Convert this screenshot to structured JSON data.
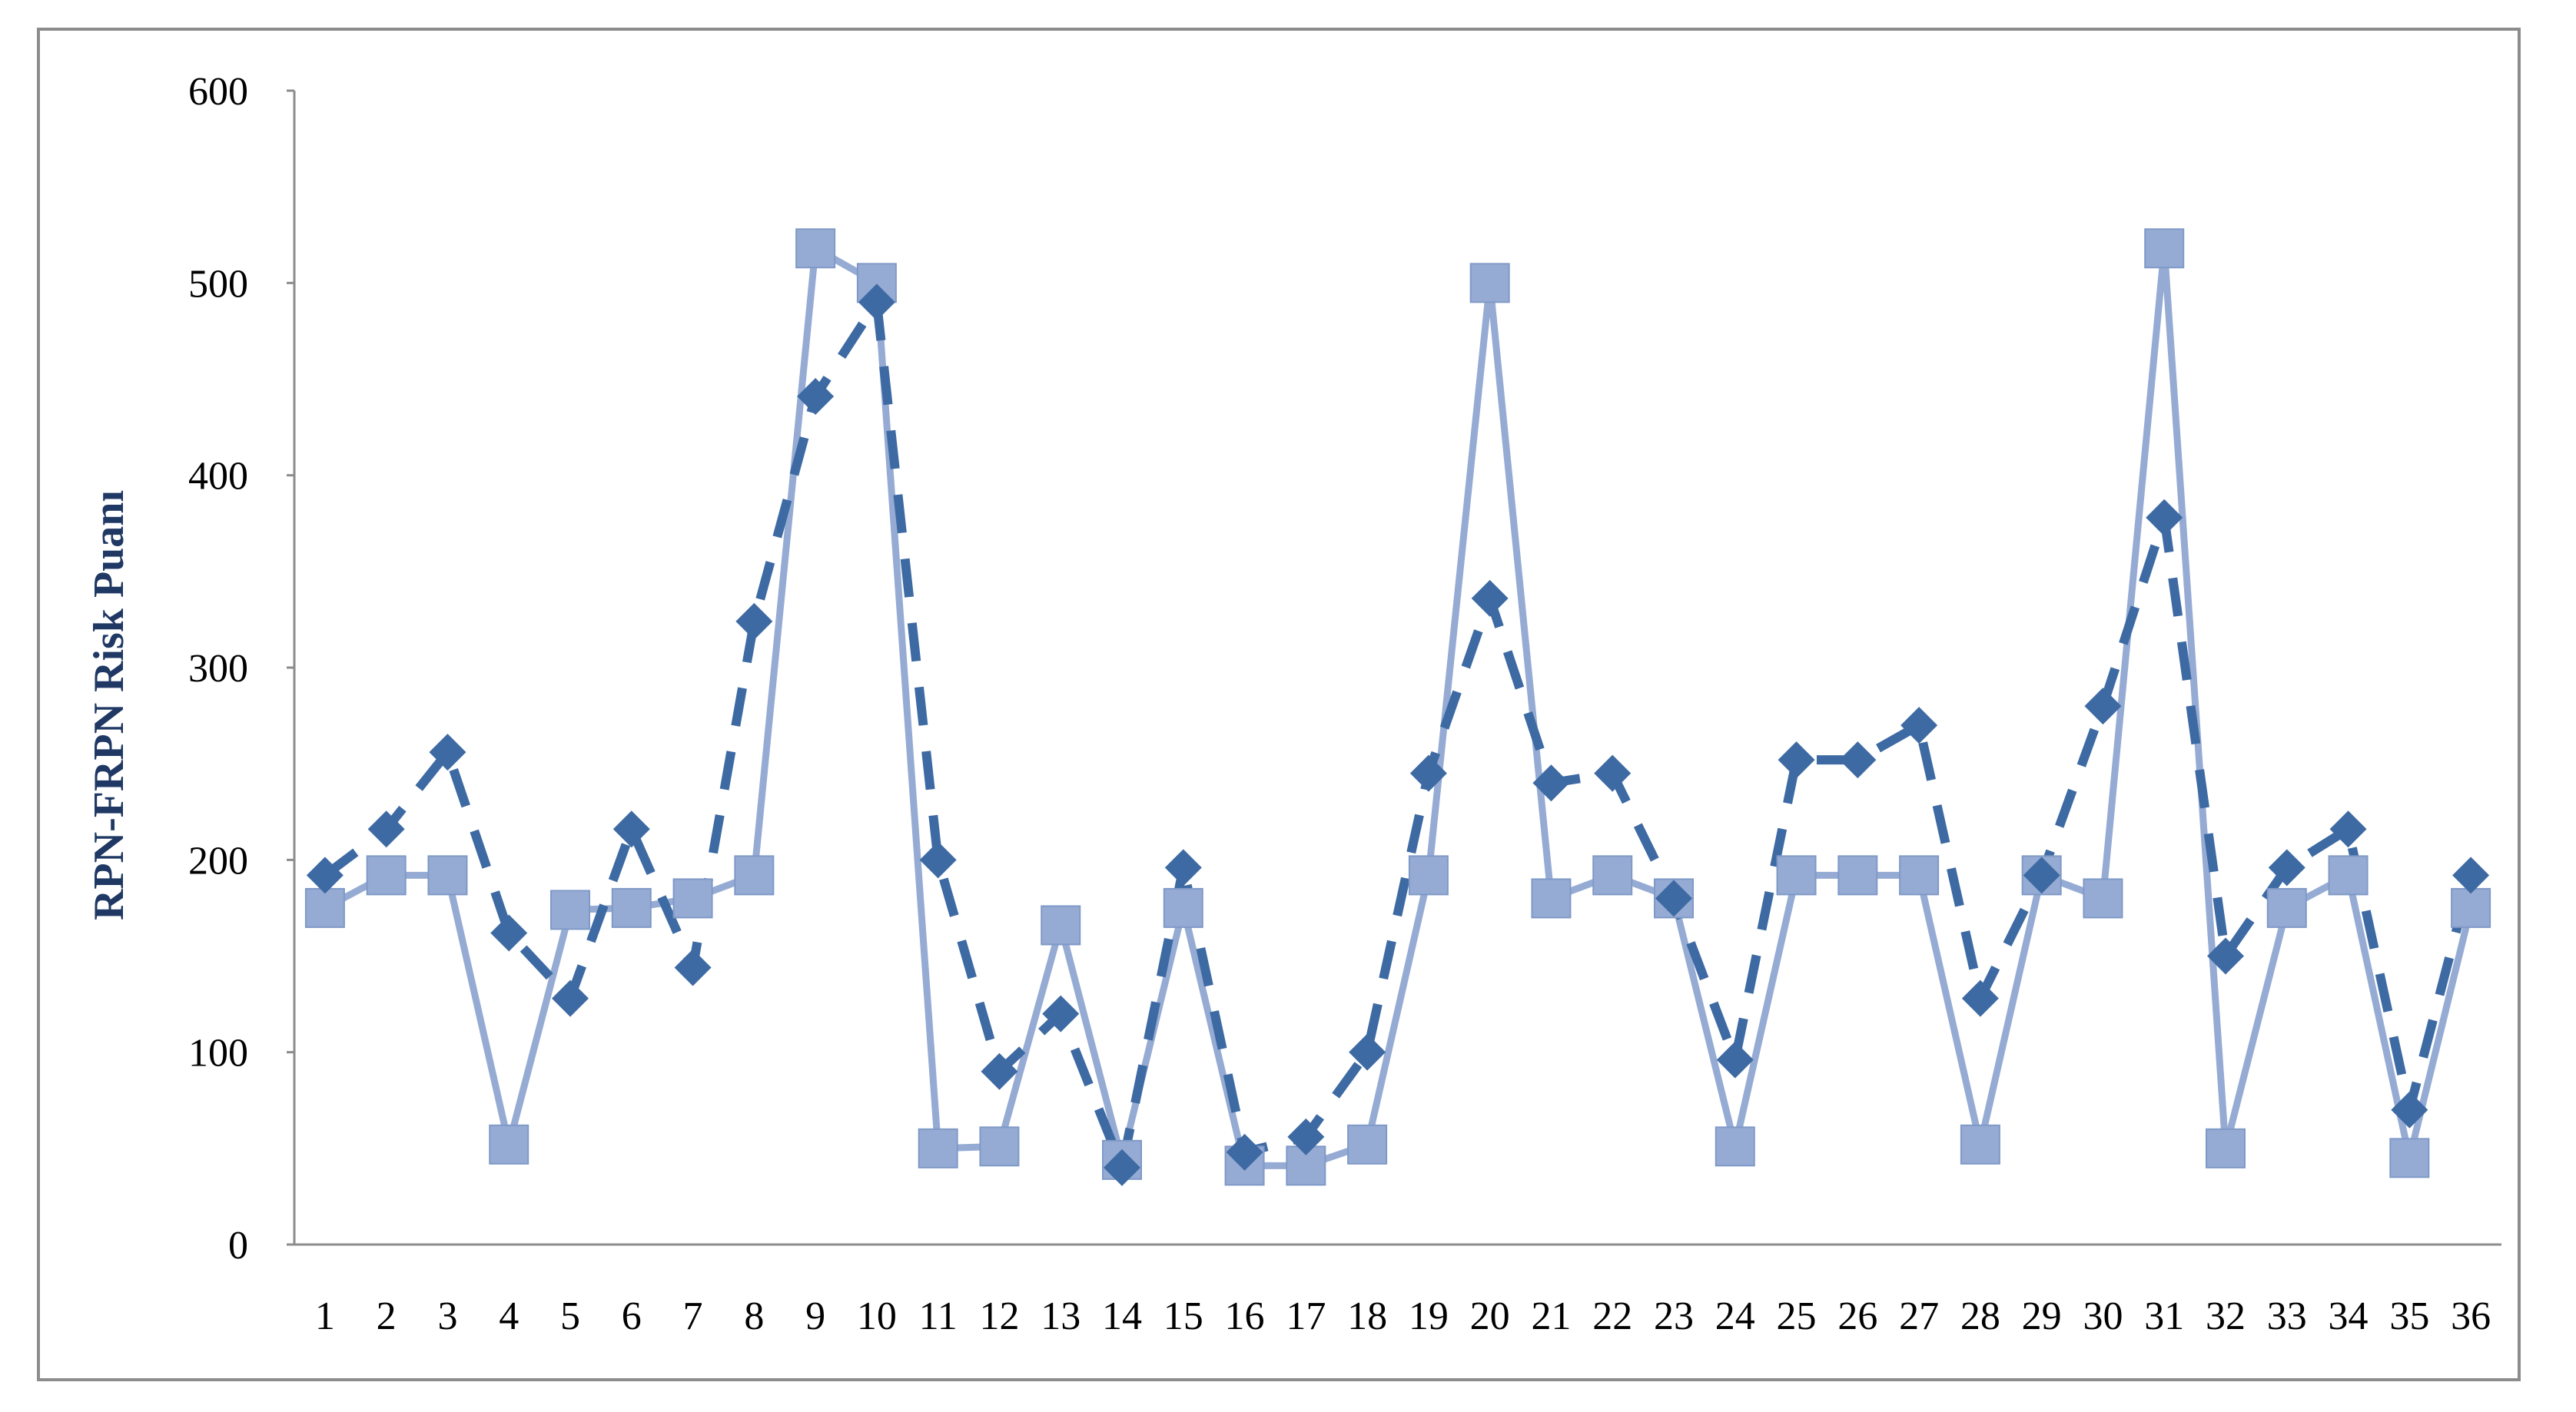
{
  "chart_data": {
    "type": "line",
    "title": "",
    "xlabel": "",
    "ylabel": "RPN-FRPN Risk Puanı",
    "ylim": [
      0,
      600
    ],
    "yticks": [
      0,
      100,
      200,
      300,
      400,
      500,
      600
    ],
    "grid": false,
    "legend": "none",
    "categories": [
      "1",
      "2",
      "3",
      "4",
      "5",
      "6",
      "7",
      "8",
      "9",
      "10",
      "11",
      "12",
      "13",
      "14",
      "15",
      "16",
      "17",
      "18",
      "19",
      "20",
      "21",
      "22",
      "23",
      "24",
      "25",
      "26",
      "27",
      "28",
      "29",
      "30",
      "31",
      "32",
      "33",
      "34",
      "35",
      "36"
    ],
    "series": [
      {
        "style": "dashed",
        "marker": "diamond",
        "color": "#3e6aa3",
        "values": [
          192,
          216,
          256,
          162,
          128,
          216,
          144,
          324,
          441,
          490,
          200,
          90,
          120,
          40,
          196,
          48,
          56,
          100,
          245,
          336,
          240,
          245,
          180,
          96,
          252,
          252,
          270,
          128,
          192,
          280,
          378,
          150,
          196,
          216,
          70,
          192
        ]
      },
      {
        "style": "solid",
        "marker": "square",
        "color": "#95abd3",
        "values": [
          175,
          192,
          192,
          52,
          174,
          175,
          180,
          192,
          518,
          500,
          50,
          51,
          166,
          44,
          175,
          41,
          41,
          52,
          192,
          500,
          180,
          192,
          180,
          51,
          192,
          192,
          192,
          52,
          192,
          180,
          518,
          50,
          175,
          192,
          45,
          175
        ]
      }
    ]
  }
}
